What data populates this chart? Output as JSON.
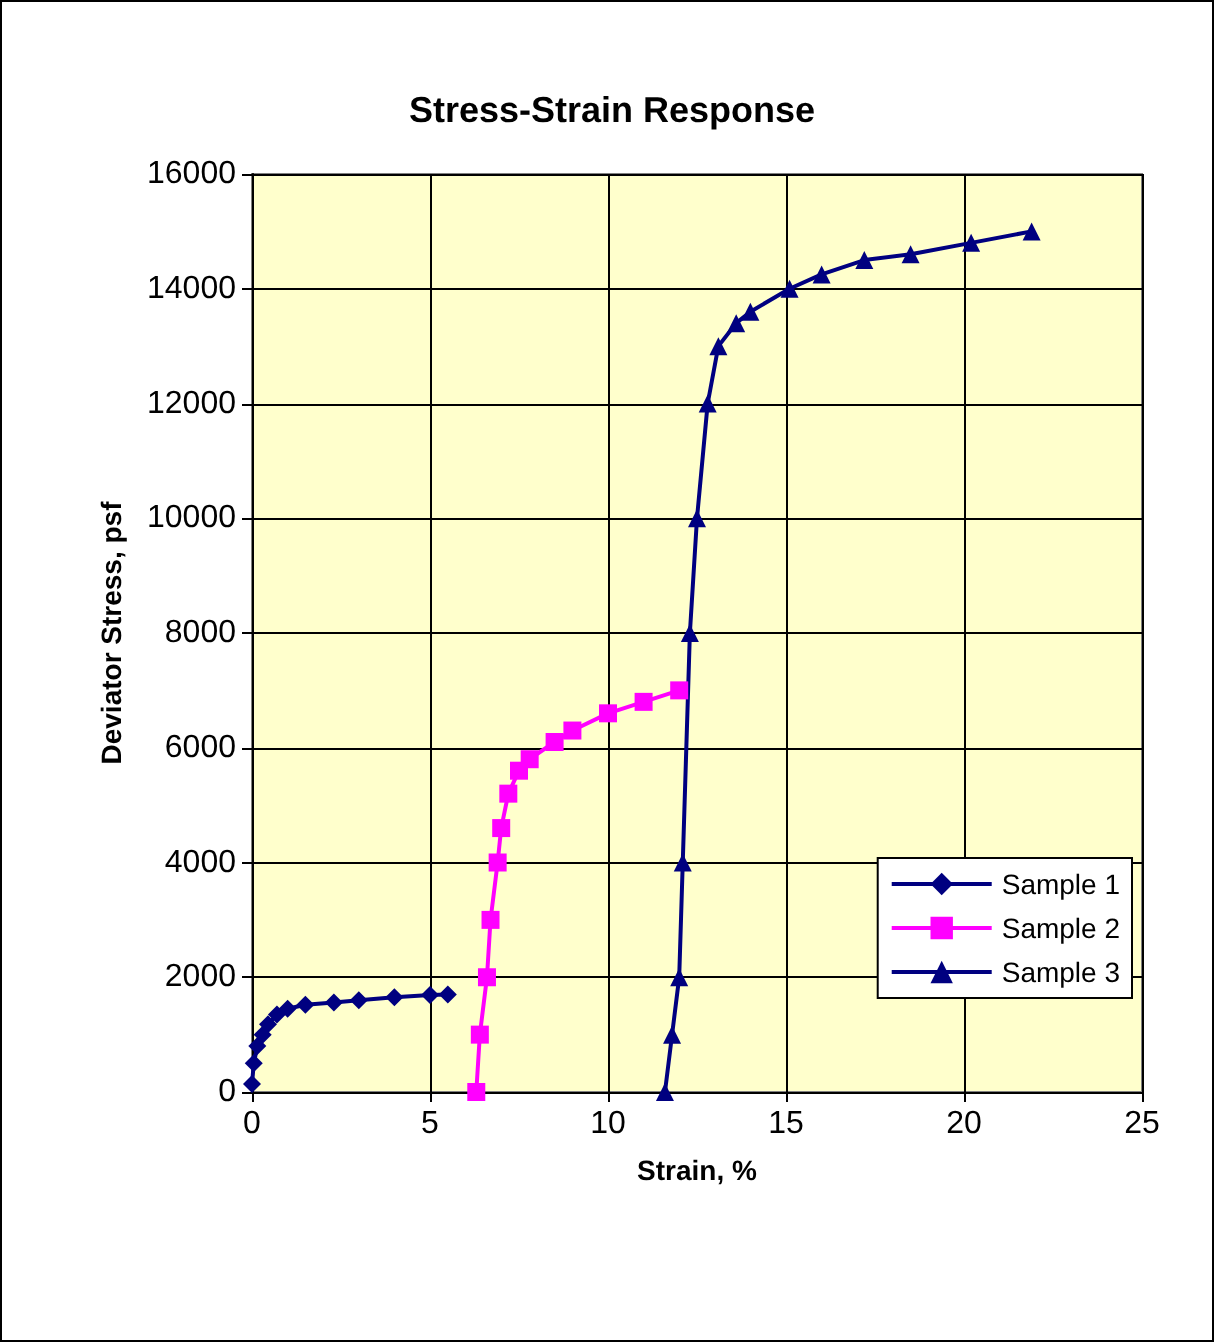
{
  "chart_data": {
    "type": "line",
    "title": "Stress-Strain Response",
    "xlabel": "Strain, %",
    "ylabel": "Deviator Stress, psf",
    "xlim": [
      0,
      25
    ],
    "xticks": [
      0,
      5,
      10,
      15,
      20,
      25
    ],
    "ylim": [
      0,
      16000
    ],
    "yticks": [
      0,
      2000,
      4000,
      6000,
      8000,
      10000,
      12000,
      14000,
      16000
    ],
    "grid": true,
    "legend": "right",
    "line_style": "solid",
    "series": [
      {
        "name": "Sample 1",
        "color": "#000080",
        "marker": "diamond",
        "x": [
          0,
          0.05,
          0.15,
          0.3,
          0.45,
          0.7,
          1.0,
          1.5,
          2.3,
          3,
          4,
          5,
          5.5
        ],
        "values": [
          140,
          500,
          800,
          1000,
          1180,
          1350,
          1450,
          1520,
          1560,
          1600,
          1650,
          1690,
          1700
        ]
      },
      {
        "name": "Sample 2",
        "color": "#ff00ff",
        "marker": "square",
        "x": [
          6.3,
          6.4,
          6.6,
          6.7,
          6.9,
          7.0,
          7.2,
          7.5,
          7.8,
          8.5,
          9,
          10,
          11,
          12
        ],
        "values": [
          0,
          1000,
          2000,
          3000,
          4000,
          4600,
          5200,
          5600,
          5800,
          6100,
          6300,
          6600,
          6800,
          7000
        ]
      },
      {
        "name": "Sample 3",
        "color": "#000080",
        "marker": "triangle",
        "x": [
          11.6,
          11.8,
          12.0,
          12.1,
          12.3,
          12.5,
          12.8,
          13.1,
          13.6,
          14.0,
          15.1,
          16,
          17.2,
          18.5,
          20.2,
          21.9
        ],
        "values": [
          0,
          1000,
          2000,
          4000,
          8000,
          10000,
          12000,
          13000,
          13400,
          13600,
          14000,
          14250,
          14500,
          14600,
          14800,
          15000
        ]
      }
    ]
  }
}
